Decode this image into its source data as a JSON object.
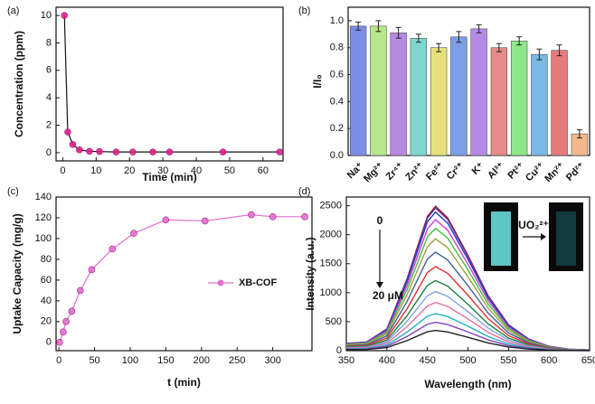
{
  "chart_data": [
    {
      "type": "line",
      "panel_label": "(a)",
      "x_label": "Time (min)",
      "y_label": "Concentration (ppm)",
      "markers": true,
      "x": [
        0.5,
        1.5,
        3,
        5,
        8,
        11,
        16,
        21,
        27,
        32,
        48,
        65
      ],
      "series": [
        {
          "color": "#e0208a",
          "values": [
            10,
            1.5,
            0.6,
            0.2,
            0.1,
            0.08,
            0.05,
            0.05,
            0.05,
            0.05,
            0.05,
            0.05
          ]
        }
      ],
      "xlim": [
        -2,
        66
      ],
      "xticks": [
        0,
        10,
        20,
        30,
        40,
        50,
        60
      ],
      "ylim": [
        -0.6,
        10.6
      ],
      "yticks": [
        0,
        2,
        4,
        6,
        8,
        10
      ]
    },
    {
      "type": "bar",
      "panel_label": "(b)",
      "y_label": "I/I₀",
      "categories": [
        "Na⁺",
        "Mg²⁺",
        "Zr⁴⁺",
        "Zn²⁺",
        "Fe²⁺",
        "Cr²⁺",
        "K⁺",
        "Al³⁺",
        "Pt²⁺",
        "Cu²⁺",
        "Mn²⁺",
        "Pd²⁺"
      ],
      "values": [
        0.96,
        0.96,
        0.91,
        0.87,
        0.8,
        0.88,
        0.94,
        0.8,
        0.85,
        0.75,
        0.78,
        0.16
      ],
      "errors": [
        0.03,
        0.04,
        0.04,
        0.03,
        0.03,
        0.04,
        0.03,
        0.03,
        0.03,
        0.04,
        0.04,
        0.03
      ],
      "colors": [
        "#7b8ee6",
        "#b8e68a",
        "#b58ae0",
        "#7fd6d0",
        "#e6e07a",
        "#7b9ee6",
        "#b58ae6",
        "#e68a8a",
        "#8ee68a",
        "#7ab8e6",
        "#e67a7a",
        "#f2b98a"
      ],
      "ylim": [
        0,
        1.1
      ],
      "yticks": [
        {
          "value": 0,
          "label": "0.0"
        },
        {
          "value": 0.2,
          "label": "0.2"
        },
        {
          "value": 0.4,
          "label": "0.4"
        },
        {
          "value": 0.6,
          "label": "0.6"
        },
        {
          "value": 0.8,
          "label": "0.8"
        },
        {
          "value": 1,
          "label": "1.0"
        }
      ]
    },
    {
      "type": "line",
      "panel_label": "(c)",
      "x_label": "t (min)",
      "y_label": "Uptake Capacity (mg/g)",
      "markers": true,
      "legend": "right",
      "x": [
        1,
        6,
        10,
        18,
        30,
        46,
        75,
        105,
        150,
        205,
        270,
        300,
        345
      ],
      "series": [
        {
          "name": "XB-COF",
          "color": "#e070d0",
          "values": [
            0,
            10,
            20,
            30,
            50,
            70,
            90,
            105,
            118,
            117,
            123,
            121,
            121
          ]
        }
      ],
      "xlim": [
        -4,
        355
      ],
      "xticks": [
        0,
        50,
        100,
        150,
        200,
        250,
        300
      ],
      "ylim": [
        -8,
        140
      ],
      "yticks": [
        0,
        20,
        40,
        60,
        80,
        100,
        120,
        140
      ]
    },
    {
      "type": "line",
      "panel_label": "(d)",
      "x_label": "Wavelength (nm)",
      "y_label": "Intensity (a.u.)",
      "markers": false,
      "annotations": [
        "0",
        "20 μM",
        "UO₂²⁺"
      ],
      "x": [
        350,
        375,
        400,
        425,
        450,
        460,
        475,
        500,
        525,
        550,
        575,
        600,
        625,
        650
      ],
      "series": [
        {
          "color": "#8b1a1a",
          "values": [
            125,
            149,
            374,
            1245,
            2316,
            2490,
            2291,
            1643,
            946,
            448,
            199,
            75,
            25,
            12
          ]
        },
        {
          "color": "#7030a0",
          "values": [
            123,
            148,
            369,
            1230,
            2288,
            2460,
            2263,
            1624,
            935,
            443,
            197,
            74,
            25,
            12
          ]
        },
        {
          "color": "#1f3fbf",
          "values": [
            120,
            143,
            359,
            1195,
            2223,
            2390,
            2199,
            1577,
            908,
            430,
            191,
            72,
            24,
            12
          ]
        },
        {
          "color": "#d040d0",
          "values": [
            113,
            136,
            339,
            1130,
            2102,
            2260,
            2079,
            1492,
            859,
            407,
            181,
            68,
            23,
            11
          ]
        },
        {
          "color": "#40c040",
          "values": [
            106,
            127,
            317,
            1055,
            1962,
            2110,
            1941,
            1393,
            802,
            380,
            169,
            63,
            21,
            11
          ]
        },
        {
          "color": "#a0a040",
          "values": [
            97,
            116,
            290,
            965,
            1795,
            1930,
            1776,
            1274,
            733,
            347,
            154,
            58,
            19,
            10
          ]
        },
        {
          "color": "#4060a0",
          "values": [
            85,
            102,
            255,
            850,
            1581,
            1700,
            1564,
            1122,
            646,
            306,
            136,
            51,
            17,
            9
          ]
        },
        {
          "color": "#e03030",
          "values": [
            73,
            87,
            218,
            725,
            1349,
            1450,
            1334,
            957,
            551,
            261,
            116,
            44,
            15,
            7
          ]
        },
        {
          "color": "#208040",
          "values": [
            61,
            73,
            182,
            605,
            1125,
            1210,
            1113,
            799,
            460,
            218,
            97,
            36,
            12,
            6
          ]
        },
        {
          "color": "#80a0e0",
          "values": [
            51,
            61,
            153,
            510,
            949,
            1020,
            938,
            673,
            388,
            184,
            82,
            31,
            10,
            5
          ]
        },
        {
          "color": "#e070a0",
          "values": [
            42,
            50,
            125,
            415,
            772,
            830,
            764,
            548,
            315,
            149,
            66,
            25,
            8,
            4
          ]
        },
        {
          "color": "#20b0c0",
          "values": [
            32,
            38,
            96,
            320,
            595,
            640,
            589,
            422,
            243,
            115,
            51,
            19,
            6,
            3
          ]
        },
        {
          "color": "#8040c0",
          "values": [
            25,
            29,
            74,
            245,
            456,
            490,
            451,
            323,
            186,
            88,
            39,
            15,
            5,
            2
          ]
        },
        {
          "color": "#202020",
          "values": [
            18,
            21,
            53,
            175,
            326,
            350,
            322,
            231,
            133,
            63,
            28,
            11,
            4,
            2
          ]
        }
      ],
      "xlim": [
        350,
        650
      ],
      "xticks": [
        350,
        400,
        450,
        500,
        550,
        600,
        650
      ],
      "ylim": [
        0,
        2650
      ],
      "yticks": [
        0,
        500,
        1000,
        1500,
        2000,
        2500
      ]
    }
  ]
}
